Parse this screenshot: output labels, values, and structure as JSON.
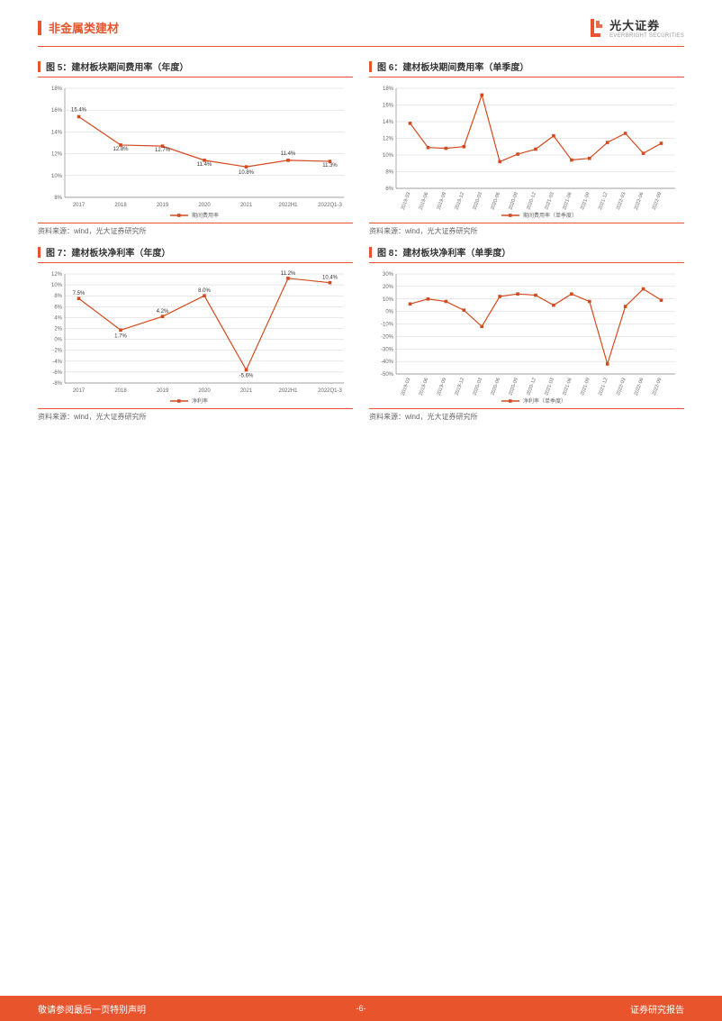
{
  "header": {
    "title": "非金属类建材",
    "logo_cn": "光大证券",
    "logo_en": "EVERBRIGHT SECURITIES"
  },
  "colors": {
    "brand": "#e8542c",
    "series": "#d44a1f",
    "grid": "#d0d0d0",
    "axis": "#888888",
    "text": "#333333",
    "muted": "#666666",
    "bg": "#ffffff"
  },
  "charts": [
    {
      "id": "chart5",
      "type": "line",
      "title": "图 5：建材板块期间费用率（年度）",
      "source": "资料来源：wind，光大证券研究所",
      "legend": "期间费用率",
      "categories": [
        "2017",
        "2018",
        "2019",
        "2020",
        "2021",
        "2022H1",
        "2022Q1-3"
      ],
      "values": [
        15.4,
        12.8,
        12.7,
        11.4,
        10.8,
        11.4,
        11.3
      ],
      "value_labels": [
        "15.4%",
        "12.8%",
        "12.7%",
        "11.4%",
        "10.8%",
        "11.4%",
        "11.3%"
      ],
      "ylim": [
        8,
        18
      ],
      "ytick_step": 2,
      "y_suffix": "%",
      "label_offset": [
        -6,
        6,
        6,
        6,
        8,
        -6,
        6
      ],
      "rotate_x": false,
      "show_data_labels": true,
      "line_color": "#d44a1f",
      "marker_color": "#d44a1f"
    },
    {
      "id": "chart6",
      "type": "line",
      "title": "图 6：建材板块期间费用率（单季度）",
      "source": "资料来源：wind，光大证券研究所",
      "legend": "期间费用率（单季度）",
      "categories": [
        "2019-03",
        "2019-06",
        "2019-09",
        "2019-12",
        "2020-03",
        "2020-06",
        "2020-09",
        "2020-12",
        "2021-03",
        "2021-06",
        "2021-09",
        "2021-12",
        "2022-03",
        "2022-06",
        "2022-09"
      ],
      "values": [
        13.8,
        10.9,
        10.8,
        11.0,
        17.2,
        9.2,
        10.1,
        10.7,
        12.3,
        9.4,
        9.6,
        11.5,
        12.6,
        10.2,
        11.4
      ],
      "ylim": [
        6,
        18
      ],
      "ytick_step": 2,
      "y_suffix": "%",
      "rotate_x": true,
      "show_data_labels": false,
      "line_color": "#d44a1f",
      "marker_color": "#d44a1f"
    },
    {
      "id": "chart7",
      "type": "line",
      "title": "图 7：建材板块净利率（年度）",
      "source": "资料来源：wind，光大证券研究所",
      "legend": "净利率",
      "categories": [
        "2017",
        "2018",
        "2019",
        "2020",
        "2021",
        "2022H1",
        "2022Q1-3"
      ],
      "values": [
        7.5,
        1.7,
        4.2,
        8.0,
        -5.6,
        11.2,
        10.4
      ],
      "value_labels": [
        "7.5%",
        "1.7%",
        "4.2%",
        "8.0%",
        "-5.6%",
        "11.2%",
        "10.4%"
      ],
      "ylim": [
        -8,
        12
      ],
      "ytick_step": 2,
      "y_suffix": "%",
      "label_offset": [
        -4,
        8,
        -4,
        -4,
        8,
        -4,
        -4
      ],
      "rotate_x": false,
      "show_data_labels": true,
      "line_color": "#d44a1f",
      "marker_color": "#d44a1f"
    },
    {
      "id": "chart8",
      "type": "line",
      "title": "图 8：建材板块净利率（单季度）",
      "source": "资料来源：wind，光大证券研究所",
      "legend": "净利率（单季度）",
      "categories": [
        "2019-03",
        "2019-06",
        "2019-09",
        "2019-12",
        "2020-03",
        "2020-06",
        "2020-09",
        "2020-12",
        "2021-03",
        "2021-06",
        "2021-09",
        "2021-12",
        "2022-03",
        "2022-06",
        "2022-09"
      ],
      "values": [
        6,
        10,
        8,
        1,
        -12,
        12,
        14,
        13,
        5,
        14,
        8,
        -42,
        4,
        18,
        9
      ],
      "ylim": [
        -50,
        30
      ],
      "ytick_step": 10,
      "y_suffix": "%",
      "rotate_x": true,
      "show_data_labels": false,
      "line_color": "#d44a1f",
      "marker_color": "#d44a1f"
    }
  ],
  "footer": {
    "left": "敬请参阅最后一页特别声明",
    "center": "-6-",
    "right": "证券研究报告"
  }
}
